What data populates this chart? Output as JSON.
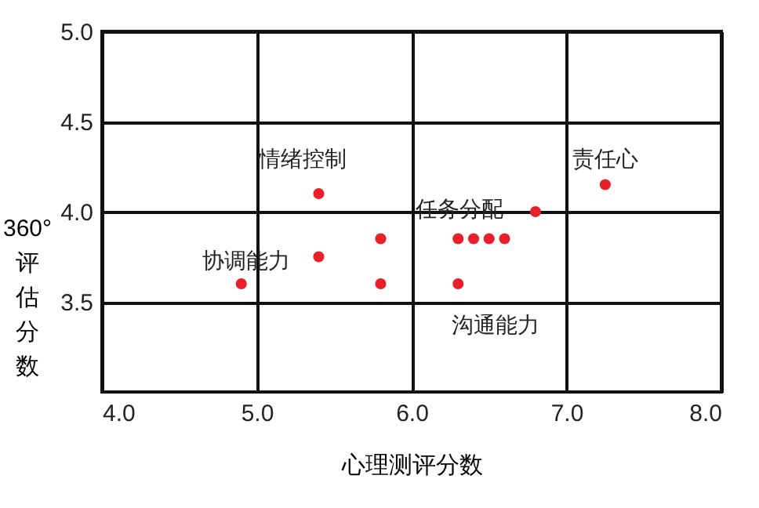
{
  "chart_data": {
    "type": "scatter",
    "xlabel": "心理测评分数",
    "ylabel": "360°评估分数",
    "x": [
      4.9,
      5.4,
      5.4,
      5.8,
      5.8,
      6.3,
      6.4,
      6.5,
      6.6,
      6.3,
      6.8,
      7.25
    ],
    "series": [
      {
        "color": "#e8202a",
        "values": [
          3.6,
          4.1,
          3.75,
          3.85,
          3.6,
          3.85,
          3.85,
          3.85,
          3.85,
          3.6,
          4.0,
          4.15
        ]
      }
    ],
    "xlim": [
      4.0,
      8.0
    ],
    "xticks": [
      {
        "value": 4,
        "label": "4.0"
      },
      {
        "value": 5,
        "label": "5.0"
      },
      {
        "value": 6,
        "label": "6.0"
      },
      {
        "value": 7,
        "label": "7.0"
      },
      {
        "value": 8,
        "label": "8.0"
      }
    ],
    "ylim": [
      3.0,
      5.0
    ],
    "yticks": [
      3.5,
      {
        "value": 4,
        "label": "4.0"
      },
      4.5,
      {
        "value": 5,
        "label": "5.0"
      }
    ],
    "grid": true,
    "marker": "circle",
    "annotations": [
      "情绪控制",
      "责任心",
      "任务分配",
      "协调能力",
      "沟通能力"
    ]
  }
}
